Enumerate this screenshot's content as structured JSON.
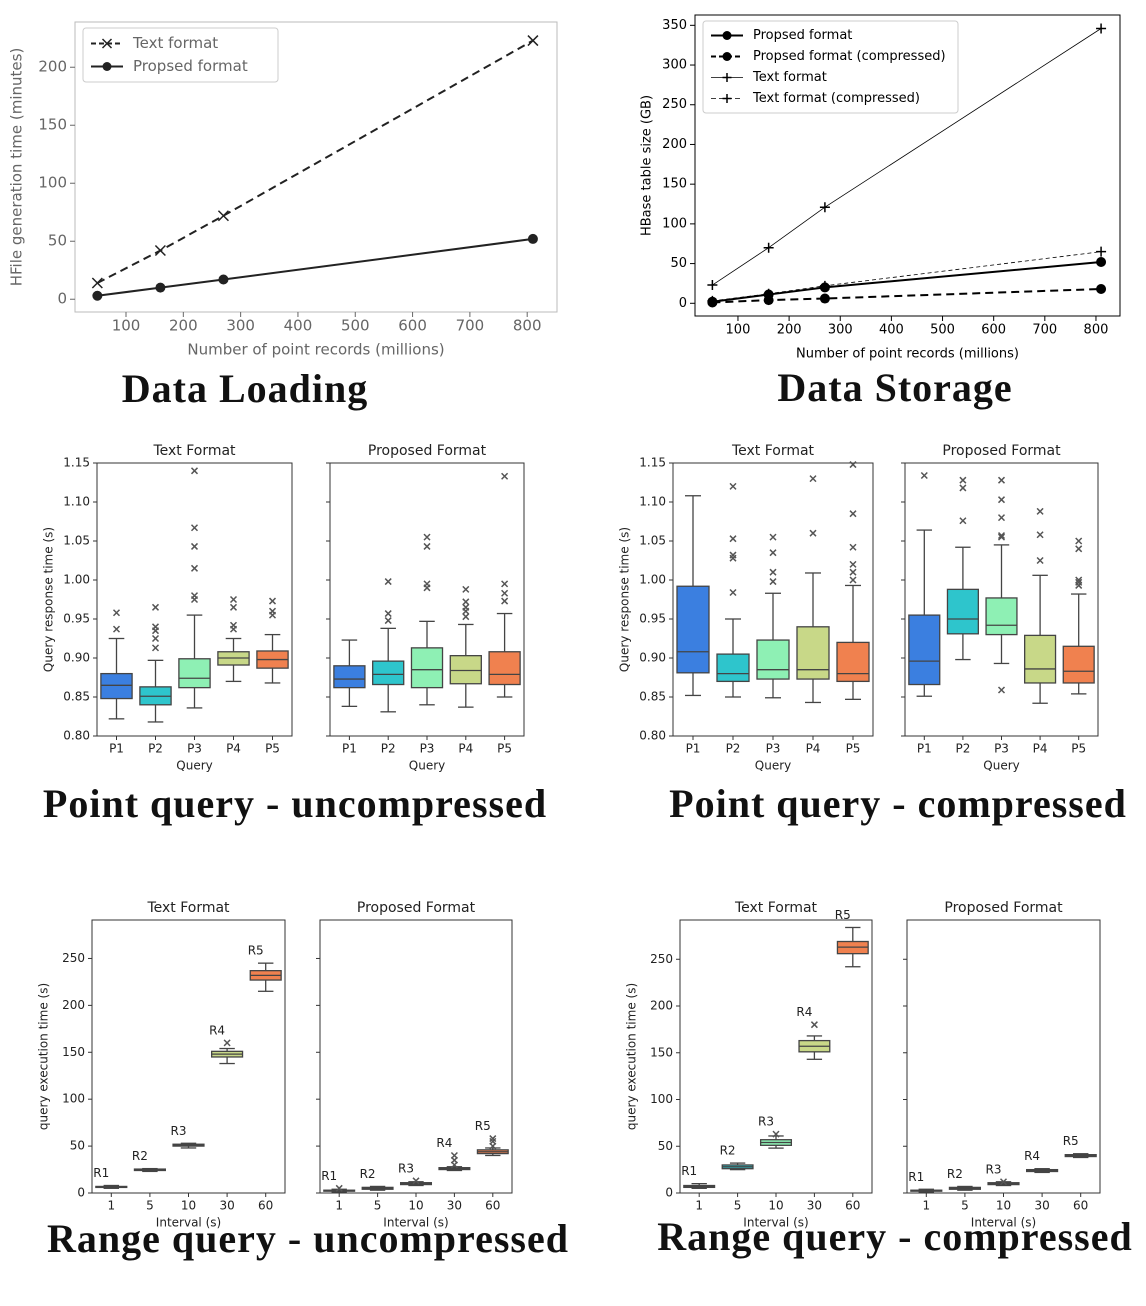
{
  "chart_data": [
    {
      "type": "line",
      "caption": "Data Loading",
      "xlabel": "Number of point records (millions)",
      "ylabel": "HFile generation time (minutes)",
      "x": [
        50,
        160,
        270,
        810
      ],
      "xlim": [
        11,
        852
      ],
      "xticks": [
        100,
        200,
        300,
        400,
        500,
        600,
        700,
        800
      ],
      "ylim": [
        -11,
        239
      ],
      "yticks": [
        0,
        50,
        100,
        150,
        200
      ],
      "legend": "upper left",
      "series": [
        {
          "name": "Text format",
          "color": "#222222",
          "linestyle": "dashed",
          "marker": "x",
          "linewidth": 2,
          "values": [
            14,
            42,
            72,
            223
          ]
        },
        {
          "name": "Propsed format",
          "color": "#222222",
          "linestyle": "solid",
          "marker": "o",
          "linewidth": 2,
          "values": [
            3,
            10,
            17,
            52
          ]
        }
      ]
    },
    {
      "type": "line",
      "caption": "Data Storage",
      "xlabel": "Number of point records (millions)",
      "ylabel": "HBase table size (GB)",
      "x": [
        50,
        160,
        270,
        810
      ],
      "xlim": [
        16,
        847
      ],
      "xticks": [
        100,
        200,
        300,
        400,
        500,
        600,
        700,
        800
      ],
      "ylim": [
        -16,
        363
      ],
      "yticks": [
        0,
        50,
        100,
        150,
        200,
        250,
        300,
        350
      ],
      "legend": "upper left",
      "series": [
        {
          "name": "Propsed format",
          "color": "#000000",
          "linestyle": "solid",
          "marker": "o",
          "linewidth": 2,
          "values": [
            2,
            11,
            20,
            52
          ]
        },
        {
          "name": "Propsed format (compressed)",
          "color": "#000000",
          "linestyle": "dashed",
          "marker": "o",
          "linewidth": 2,
          "values": [
            1,
            4,
            6,
            18
          ]
        },
        {
          "name": "Text format",
          "color": "#000000",
          "linestyle": "solid",
          "marker": "+",
          "linewidth": 0.8,
          "values": [
            23,
            70,
            121,
            346
          ]
        },
        {
          "name": "Text format (compressed)",
          "color": "#000000",
          "linestyle": "dashed",
          "marker": "+",
          "linewidth": 0.8,
          "values": [
            3,
            12,
            22,
            65
          ]
        }
      ]
    },
    {
      "type": "box",
      "caption": "Point query - uncompressed",
      "xlabel": "Query",
      "ylabel": "Query response time (s)",
      "categories": [
        "P1",
        "P2",
        "P3",
        "P4",
        "P5"
      ],
      "colors": [
        "#3b7fe0",
        "#2ec5cc",
        "#8ef0b4",
        "#c8d888",
        "#f0814f"
      ],
      "ylim": [
        0.8,
        1.15
      ],
      "yticks": [
        {
          "value": 0.8,
          "label": "0.80"
        },
        {
          "value": 0.85,
          "label": "0.85"
        },
        {
          "value": 0.9,
          "label": "0.90"
        },
        {
          "value": 0.95,
          "label": "0.95"
        },
        {
          "value": 1.0,
          "label": "1.00"
        },
        {
          "value": 1.05,
          "label": "1.05"
        },
        {
          "value": 1.1,
          "label": "1.10"
        },
        {
          "value": 1.15,
          "label": "1.15"
        }
      ],
      "panels": [
        {
          "title": "Text Format",
          "boxes": [
            {
              "low": 0.822,
              "q1": 0.848,
              "median": 0.865,
              "q3": 0.88,
              "high": 0.925,
              "outliers": [
                0.937,
                0.958
              ]
            },
            {
              "low": 0.818,
              "q1": 0.84,
              "median": 0.851,
              "q3": 0.863,
              "high": 0.897,
              "outliers": [
                0.913,
                0.925,
                0.935,
                0.94,
                0.965
              ]
            },
            {
              "low": 0.836,
              "q1": 0.862,
              "median": 0.874,
              "q3": 0.899,
              "high": 0.955,
              "outliers": [
                0.975,
                0.98,
                1.015,
                1.043,
                1.067,
                1.14
              ]
            },
            {
              "low": 0.87,
              "q1": 0.891,
              "median": 0.9,
              "q3": 0.908,
              "high": 0.925,
              "outliers": [
                0.937,
                0.942,
                0.965,
                0.975
              ]
            },
            {
              "low": 0.868,
              "q1": 0.887,
              "median": 0.898,
              "q3": 0.909,
              "high": 0.93,
              "outliers": [
                0.955,
                0.96,
                0.973
              ]
            }
          ]
        },
        {
          "title": "Proposed Format",
          "boxes": [
            {
              "low": 0.838,
              "q1": 0.862,
              "median": 0.873,
              "q3": 0.89,
              "high": 0.923,
              "outliers": []
            },
            {
              "low": 0.831,
              "q1": 0.866,
              "median": 0.879,
              "q3": 0.896,
              "high": 0.938,
              "outliers": [
                0.948,
                0.957,
                0.998
              ]
            },
            {
              "low": 0.84,
              "q1": 0.862,
              "median": 0.885,
              "q3": 0.913,
              "high": 0.947,
              "outliers": [
                0.99,
                0.995,
                1.043,
                1.055
              ]
            },
            {
              "low": 0.837,
              "q1": 0.867,
              "median": 0.884,
              "q3": 0.903,
              "high": 0.943,
              "outliers": [
                0.953,
                0.96,
                0.965,
                0.972,
                0.988
              ]
            },
            {
              "low": 0.85,
              "q1": 0.866,
              "median": 0.879,
              "q3": 0.908,
              "high": 0.957,
              "outliers": [
                0.973,
                0.983,
                0.995,
                1.133
              ]
            }
          ]
        }
      ]
    },
    {
      "type": "box",
      "caption": "Point query - compressed",
      "xlabel": "Query",
      "ylabel": "Query response time (s)",
      "categories": [
        "P1",
        "P2",
        "P3",
        "P4",
        "P5"
      ],
      "colors": [
        "#3b7fe0",
        "#2ec5cc",
        "#8ef0b4",
        "#c8d888",
        "#f0814f"
      ],
      "ylim": [
        0.8,
        1.15
      ],
      "yticks": [
        {
          "value": 0.8,
          "label": "0.80"
        },
        {
          "value": 0.85,
          "label": "0.85"
        },
        {
          "value": 0.9,
          "label": "0.90"
        },
        {
          "value": 0.95,
          "label": "0.95"
        },
        {
          "value": 1.0,
          "label": "1.00"
        },
        {
          "value": 1.05,
          "label": "1.05"
        },
        {
          "value": 1.1,
          "label": "1.10"
        },
        {
          "value": 1.15,
          "label": "1.15"
        }
      ],
      "panels": [
        {
          "title": "Text Format",
          "boxes": [
            {
              "low": 0.852,
              "q1": 0.881,
              "median": 0.908,
              "q3": 0.992,
              "high": 1.108,
              "outliers": []
            },
            {
              "low": 0.85,
              "q1": 0.87,
              "median": 0.88,
              "q3": 0.905,
              "high": 0.95,
              "outliers": [
                0.984,
                1.028,
                1.032,
                1.053,
                1.12
              ]
            },
            {
              "low": 0.849,
              "q1": 0.873,
              "median": 0.885,
              "q3": 0.923,
              "high": 0.983,
              "outliers": [
                0.998,
                1.01,
                1.035,
                1.055
              ]
            },
            {
              "low": 0.843,
              "q1": 0.873,
              "median": 0.885,
              "q3": 0.94,
              "high": 1.009,
              "outliers": [
                1.06,
                1.13
              ]
            },
            {
              "low": 0.847,
              "q1": 0.87,
              "median": 0.88,
              "q3": 0.92,
              "high": 0.993,
              "outliers": [
                1.0,
                1.01,
                1.02,
                1.042,
                1.085,
                1.148
              ]
            }
          ]
        },
        {
          "title": "Proposed Format",
          "boxes": [
            {
              "low": 0.851,
              "q1": 0.866,
              "median": 0.896,
              "q3": 0.955,
              "high": 1.064,
              "outliers": [
                1.134
              ]
            },
            {
              "low": 0.898,
              "q1": 0.931,
              "median": 0.95,
              "q3": 0.988,
              "high": 1.042,
              "outliers": [
                1.076,
                1.118,
                1.128
              ]
            },
            {
              "low": 0.893,
              "q1": 0.93,
              "median": 0.942,
              "q3": 0.977,
              "high": 1.045,
              "outliers": [
                0.859,
                1.055,
                1.057,
                1.08,
                1.103,
                1.128
              ]
            },
            {
              "low": 0.842,
              "q1": 0.868,
              "median": 0.886,
              "q3": 0.929,
              "high": 1.006,
              "outliers": [
                1.025,
                1.058,
                1.088
              ]
            },
            {
              "low": 0.854,
              "q1": 0.868,
              "median": 0.883,
              "q3": 0.915,
              "high": 0.982,
              "outliers": [
                0.993,
                0.997,
                1.0,
                1.04,
                1.05
              ]
            }
          ]
        }
      ]
    },
    {
      "type": "box",
      "caption": "Range query - uncompressed",
      "xlabel": "Interval (s)",
      "ylabel": "query execution time (s)",
      "categories": [
        "1",
        "5",
        "10",
        "30",
        "60"
      ],
      "colors": [
        "#3b7fe0",
        "#2ec5cc",
        "#8ef0b4",
        "#c8d888",
        "#f0814f"
      ],
      "ylim": [
        0,
        291
      ],
      "yticks": [
        0,
        50,
        100,
        150,
        200,
        250
      ],
      "panels": [
        {
          "title": "Text Format",
          "labels": [
            "R1",
            "R2",
            "R3",
            "R4",
            "R5"
          ],
          "boxes": [
            {
              "low": 5,
              "q1": 6,
              "median": 6.5,
              "q3": 7,
              "high": 8,
              "outliers": []
            },
            {
              "low": 23,
              "q1": 24,
              "median": 25,
              "q3": 25.5,
              "high": 26,
              "outliers": []
            },
            {
              "low": 48,
              "q1": 50,
              "median": 51,
              "q3": 52,
              "high": 53,
              "outliers": []
            },
            {
              "low": 138,
              "q1": 145,
              "median": 148,
              "q3": 151,
              "high": 154,
              "outliers": [
                160
              ]
            },
            {
              "low": 215,
              "q1": 227,
              "median": 232,
              "q3": 237,
              "high": 245,
              "outliers": []
            }
          ]
        },
        {
          "title": "Proposed Format",
          "labels": [
            "R1",
            "R2",
            "R3",
            "R4",
            "R5"
          ],
          "boxes": [
            {
              "low": 1,
              "q1": 2,
              "median": 2.5,
              "q3": 3,
              "high": 4,
              "outliers": [
                5
              ]
            },
            {
              "low": 3,
              "q1": 4,
              "median": 5,
              "q3": 6,
              "high": 7,
              "outliers": []
            },
            {
              "low": 8,
              "q1": 9,
              "median": 10,
              "q3": 11,
              "high": 12,
              "outliers": [
                13
              ]
            },
            {
              "low": 24,
              "q1": 25,
              "median": 26,
              "q3": 27,
              "high": 28,
              "outliers": [
                30,
                35,
                40
              ]
            },
            {
              "low": 40,
              "q1": 42,
              "median": 44,
              "q3": 46,
              "high": 48,
              "outliers": [
                50,
                55,
                58
              ]
            }
          ]
        }
      ]
    },
    {
      "type": "box",
      "caption": "Range query - compressed",
      "xlabel": "Interval (s)",
      "ylabel": "query execution time (s)",
      "categories": [
        "1",
        "5",
        "10",
        "30",
        "60"
      ],
      "colors": [
        "#3b7fe0",
        "#2ec5cc",
        "#8ef0b4",
        "#c8d888",
        "#f0814f"
      ],
      "ylim": [
        0,
        292
      ],
      "yticks": [
        0,
        50,
        100,
        150,
        200,
        250
      ],
      "panels": [
        {
          "title": "Text Format",
          "labels": [
            "R1",
            "R2",
            "R3",
            "R4",
            "R5"
          ],
          "boxes": [
            {
              "low": 5,
              "q1": 6,
              "median": 7,
              "q3": 8,
              "high": 10,
              "outliers": []
            },
            {
              "low": 25,
              "q1": 26,
              "median": 28,
              "q3": 30,
              "high": 32,
              "outliers": []
            },
            {
              "low": 48,
              "q1": 51,
              "median": 54,
              "q3": 57,
              "high": 61,
              "outliers": [
                63
              ]
            },
            {
              "low": 143,
              "q1": 151,
              "median": 157,
              "q3": 163,
              "high": 168,
              "outliers": [
                180
              ]
            },
            {
              "low": 242,
              "q1": 256,
              "median": 263,
              "q3": 269,
              "high": 284,
              "outliers": []
            }
          ]
        },
        {
          "title": "Proposed Format",
          "labels": [
            "R1",
            "R2",
            "R3",
            "R4",
            "R5"
          ],
          "boxes": [
            {
              "low": 1,
              "q1": 2,
              "median": 2.5,
              "q3": 3,
              "high": 4,
              "outliers": []
            },
            {
              "low": 3,
              "q1": 4,
              "median": 5,
              "q3": 6,
              "high": 7,
              "outliers": []
            },
            {
              "low": 8,
              "q1": 9,
              "median": 10,
              "q3": 11,
              "high": 12,
              "outliers": [
                12
              ]
            },
            {
              "low": 22,
              "q1": 23,
              "median": 24,
              "q3": 25,
              "high": 26,
              "outliers": []
            },
            {
              "low": 38,
              "q1": 39,
              "median": 40,
              "q3": 41,
              "high": 42,
              "outliers": []
            }
          ]
        }
      ]
    }
  ]
}
